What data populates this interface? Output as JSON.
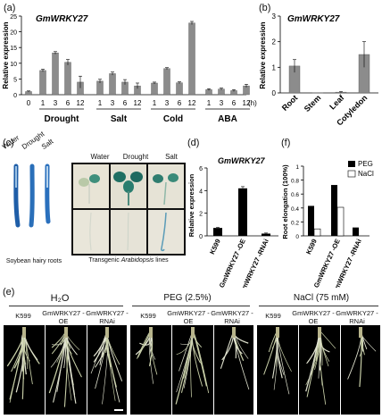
{
  "panels": {
    "a": {
      "label": "(a)",
      "gene": "GmWRKY27",
      "ylabel": "Relative expression",
      "unit": "(h)",
      "yticks": [
        "0",
        "5",
        "10",
        "15",
        "20",
        "25"
      ],
      "time_labels": [
        "0",
        "1",
        "3",
        "6",
        "12",
        "1",
        "3",
        "6",
        "12",
        "1",
        "3",
        "6",
        "12",
        "1",
        "3",
        "6",
        "12"
      ],
      "groups": [
        "Drought",
        "Salt",
        "Cold",
        "ABA"
      ]
    },
    "b": {
      "label": "(b)",
      "gene": "GmWRKY27",
      "ylabel": "Relative expression",
      "yticks": [
        "0",
        "1",
        "2",
        "3"
      ],
      "categories": [
        "Root",
        "Stem",
        "Leaf",
        "Cotyledon"
      ]
    },
    "c": {
      "label": "(c)",
      "root_labels": [
        "Water",
        "Drought",
        "Salt"
      ],
      "col_labels": [
        "Water",
        "Drought",
        "Salt"
      ],
      "caption_left": "Soybean hairy roots",
      "caption_right_1": "Transgenic ",
      "caption_right_2": "Arabidopsis",
      "caption_right_3": " lines"
    },
    "d": {
      "label": "(d)",
      "gene": "GmWRKY27",
      "ylabel": "Relative expression",
      "yticks": [
        "0",
        "2",
        "4",
        "6"
      ],
      "categories": [
        "K599",
        "GmWRKY27 -OE",
        "GmWRKY27 -RNAi"
      ]
    },
    "f": {
      "label": "(f)",
      "ylabel": "Root elongation (100%)",
      "yticks": [
        "0",
        "0.2",
        "0.4",
        "0.6",
        "0.8",
        "1"
      ],
      "legend": [
        "PEG",
        "NaCl"
      ],
      "categories": [
        "K599",
        "GmWRKY27 -OE",
        "GmWRKY27 -RNAi"
      ]
    },
    "e": {
      "label": "(e)",
      "conditions": [
        "H₂O",
        "PEG (2.5%)",
        "NaCl (75 mM)"
      ],
      "lines": [
        "K599",
        "GmWRKY27 -OE",
        "GmWRKY27 -RNAi"
      ]
    }
  },
  "chart_data": [
    {
      "type": "bar",
      "panel": "a",
      "title": "GmWRKY27",
      "ylabel": "Relative expression",
      "ylim": [
        0,
        25
      ],
      "categories": [
        "0",
        "Drought 1",
        "Drought 3",
        "Drought 6",
        "Drought 12",
        "Salt 1",
        "Salt 3",
        "Salt 6",
        "Salt 12",
        "Cold 1",
        "Cold 3",
        "Cold 6",
        "Cold 12",
        "ABA 1",
        "ABA 3",
        "ABA 6",
        "ABA 12"
      ],
      "values": [
        1.0,
        7.7,
        13.3,
        10.3,
        4.0,
        4.3,
        6.7,
        4.0,
        2.8,
        3.7,
        8.3,
        3.8,
        22.8,
        1.6,
        1.8,
        1.3,
        2.8
      ],
      "errors": [
        0.2,
        0.4,
        0.4,
        0.9,
        1.9,
        0.6,
        0.5,
        0.8,
        0.9,
        0.3,
        0.3,
        0.3,
        0.5,
        0.3,
        0.3,
        0.3,
        0.5
      ]
    },
    {
      "type": "bar",
      "panel": "b",
      "title": "GmWRKY27",
      "ylabel": "Relative expression",
      "ylim": [
        0,
        3
      ],
      "categories": [
        "Root",
        "Stem",
        "Leaf",
        "Cotyledon"
      ],
      "values": [
        1.05,
        0.01,
        0.03,
        1.5
      ],
      "errors": [
        0.25,
        0,
        0.02,
        0.5
      ]
    },
    {
      "type": "bar",
      "panel": "d",
      "title": "GmWRKY27",
      "ylabel": "Relative expression",
      "ylim": [
        0,
        6
      ],
      "categories": [
        "K599",
        "GmWRKY27 -OE",
        "GmWRKY27 -RNAi"
      ],
      "values": [
        0.7,
        4.2,
        0.2
      ],
      "errors": [
        0.05,
        0.15,
        0.05
      ]
    },
    {
      "type": "bar",
      "panel": "f",
      "ylabel": "Root elongation (100%)",
      "ylim": [
        0,
        1
      ],
      "categories": [
        "K599",
        "GmWRKY27 -OE",
        "GmWRKY27 -RNAi"
      ],
      "series": [
        {
          "name": "PEG",
          "values": [
            0.43,
            0.73,
            0.12
          ]
        },
        {
          "name": "NaCl",
          "values": [
            0.1,
            0.41,
            0.0
          ]
        }
      ],
      "legend": "top-right"
    }
  ],
  "colors": {
    "bar_gray": "#8c8c8c",
    "bar_black": "#000000",
    "photo_bg": "#000000",
    "seedling_bg": "#e7e3d6"
  }
}
